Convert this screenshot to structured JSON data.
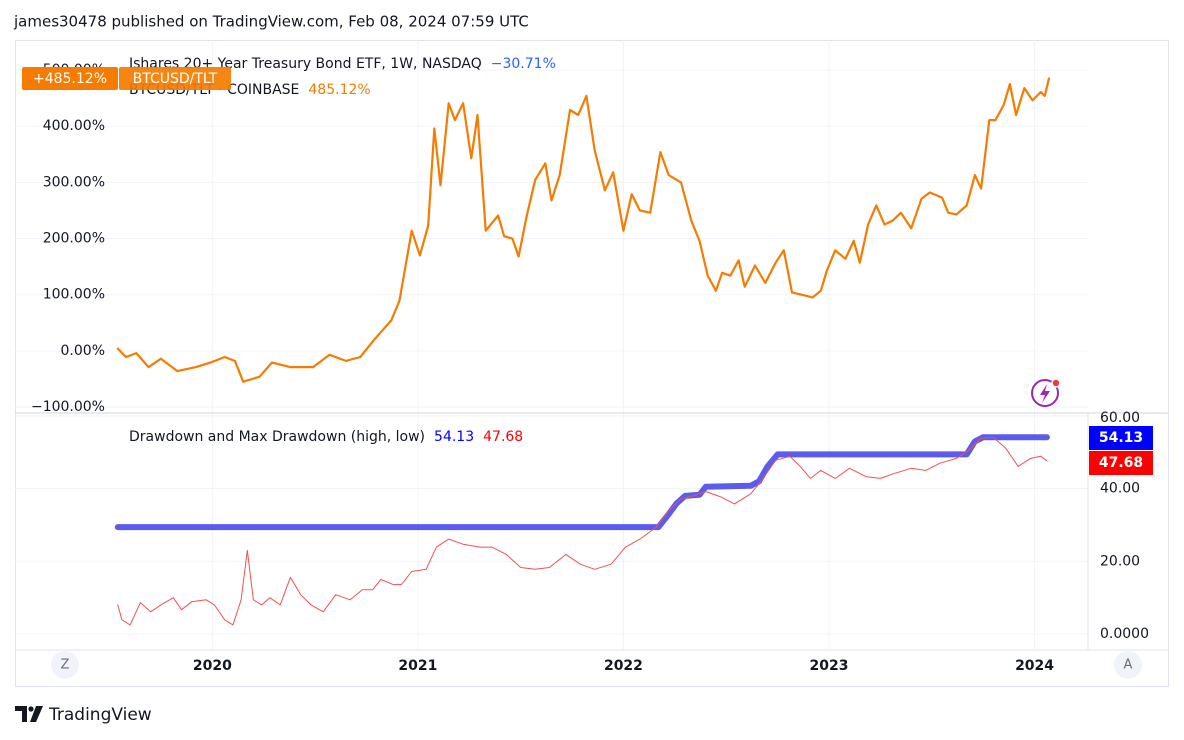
{
  "header": "james30478 published on TradingView.com, Feb 08, 2024 07:59 UTC",
  "footer": "TradingView",
  "buttons": [
    "Z",
    "A"
  ],
  "chart_data": [
    {
      "type": "line",
      "legend": [
        "Ishares 20+ Year Treasury Bond ETF, 1W, NASDAQ",
        "−30.71%",
        "BTCUSD/TLT · COINBASE"
      ],
      "legend_colors": [
        "#131722",
        "#2962ff",
        "#131722"
      ],
      "badge": "+485.12%",
      "series": [
        {
          "name": "BTCUSD/TLT",
          "color": "#f57c00",
          "value_label": "485.12%",
          "x": [
            2019.54,
            2019.58,
            2019.63,
            2019.69,
            2019.75,
            2019.83,
            2019.92,
            2019.99,
            2020.06,
            2020.11,
            2020.15,
            2020.23,
            2020.29,
            2020.38,
            2020.49,
            2020.57,
            2020.65,
            2020.72,
            2020.79,
            2020.87,
            2020.91,
            2020.97,
            2021.01,
            2021.05,
            2021.08,
            2021.11,
            2021.15,
            2021.18,
            2021.22,
            2021.26,
            2021.29,
            2021.33,
            2021.39,
            2021.42,
            2021.46,
            2021.49,
            2021.53,
            2021.57,
            2021.62,
            2021.65,
            2021.69,
            2021.74,
            2021.78,
            2021.82,
            2021.86,
            2021.91,
            2021.95,
            2022.0,
            2022.04,
            2022.08,
            2022.13,
            2022.18,
            2022.22,
            2022.28,
            2022.33,
            2022.37,
            2022.41,
            2022.45,
            2022.48,
            2022.52,
            2022.56,
            2022.59,
            2022.64,
            2022.69,
            2022.74,
            2022.78,
            2022.82,
            2022.89,
            2022.92,
            2022.96,
            2022.99,
            2023.03,
            2023.08,
            2023.12,
            2023.15,
            2023.19,
            2023.23,
            2023.27,
            2023.31,
            2023.35,
            2023.4,
            2023.45,
            2023.49,
            2023.55,
            2023.58,
            2023.62,
            2023.67,
            2023.71,
            2023.74,
            2023.78,
            2023.81,
            2023.85,
            2023.88,
            2023.91,
            2023.95,
            2023.99,
            2024.03,
            2024.05,
            2024.07
          ],
          "values": [
            4,
            -11,
            -4,
            -29,
            -14,
            -36,
            -29,
            -21,
            -11,
            -18,
            -55,
            -46,
            -21,
            -29,
            -29,
            -7,
            -18,
            -11,
            21,
            54,
            89,
            214,
            170,
            223,
            396,
            295,
            441,
            411,
            441,
            343,
            420,
            214,
            241,
            204,
            200,
            168,
            241,
            304,
            334,
            268,
            313,
            429,
            420,
            454,
            357,
            286,
            318,
            214,
            279,
            250,
            246,
            354,
            313,
            300,
            232,
            196,
            134,
            107,
            139,
            134,
            161,
            114,
            152,
            121,
            157,
            179,
            104,
            98,
            95,
            107,
            143,
            179,
            164,
            196,
            157,
            225,
            259,
            225,
            232,
            246,
            218,
            271,
            282,
            273,
            246,
            243,
            259,
            313,
            289,
            411,
            411,
            438,
            475,
            420,
            468,
            446,
            461,
            454,
            485.12
          ]
        }
      ],
      "xlim": [
        2019.04,
        2024.26
      ],
      "xticks": [
        2020,
        2021,
        2022,
        2023,
        2024
      ],
      "ylim": [
        -110.7,
        553.6
      ],
      "yticks": [
        {
          "value": -100,
          "label": "−100.00%"
        },
        {
          "value": 0,
          "label": "0.00%"
        },
        {
          "value": 100,
          "label": "100.00%"
        },
        {
          "value": 200,
          "label": "200.00%"
        },
        {
          "value": 300,
          "label": "300.00%"
        },
        {
          "value": 400,
          "label": "400.00%"
        },
        {
          "value": 500,
          "label": "500.00%"
        }
      ],
      "grid": true
    },
    {
      "type": "line",
      "title": "Drawdown and Max Drawdown (high, low)",
      "series": [
        {
          "color": "#5b5bee",
          "label_color": "#0000ff",
          "value_label": "54.13",
          "x": [
            2019.54,
            2022.17,
            2022.22,
            2022.26,
            2022.3,
            2022.37,
            2022.4,
            2022.62,
            2022.66,
            2022.7,
            2022.75,
            2023.67,
            2023.71,
            2023.75,
            2024.06
          ],
          "values": [
            29.4,
            29.4,
            33,
            36,
            38,
            38.3,
            40.5,
            40.8,
            42,
            46,
            49.4,
            49.4,
            53,
            54.13,
            54.13
          ]
        },
        {
          "color": "#f05252",
          "label_color": "#ff0000",
          "value_label": "47.68",
          "x": [
            2019.54,
            2019.56,
            2019.6,
            2019.65,
            2019.7,
            2019.75,
            2019.81,
            2019.85,
            2019.9,
            2019.97,
            2020.01,
            2020.06,
            2020.1,
            2020.14,
            2020.17,
            2020.2,
            2020.24,
            2020.28,
            2020.33,
            2020.38,
            2020.43,
            2020.48,
            2020.54,
            2020.6,
            2020.67,
            2020.73,
            2020.78,
            2020.82,
            2020.88,
            2020.92,
            2020.97,
            2021.04,
            2021.09,
            2021.15,
            2021.22,
            2021.3,
            2021.36,
            2021.43,
            2021.5,
            2021.57,
            2021.64,
            2021.72,
            2021.79,
            2021.86,
            2021.94,
            2022.01,
            2022.08,
            2022.16,
            2022.22,
            2022.28,
            2022.34,
            2022.4,
            2022.47,
            2022.54,
            2022.62,
            2022.68,
            2022.74,
            2022.81,
            2022.86,
            2022.91,
            2022.96,
            2023.03,
            2023.1,
            2023.18,
            2023.25,
            2023.32,
            2023.4,
            2023.47,
            2023.54,
            2023.62,
            2023.68,
            2023.74,
            2023.8,
            2023.86,
            2023.92,
            2023.98,
            2024.03,
            2024.06
          ],
          "values": [
            8,
            3.9,
            2.5,
            8.6,
            6.1,
            8,
            10,
            6.7,
            8.9,
            9.4,
            8,
            3.9,
            2.5,
            9.4,
            23,
            9.4,
            8,
            10,
            8,
            15.6,
            10.8,
            8,
            6.1,
            10.8,
            9.4,
            12.2,
            12.2,
            15,
            13.6,
            13.6,
            17.2,
            17.8,
            23.9,
            26.1,
            24.7,
            23.9,
            23.9,
            21.9,
            18.3,
            17.8,
            18.3,
            21.9,
            19.2,
            17.8,
            19.2,
            23.9,
            26.1,
            29.4,
            33.9,
            37.2,
            38,
            39.2,
            37.8,
            35.8,
            38.6,
            42.8,
            47.8,
            48.9,
            46.1,
            42.8,
            45,
            42.8,
            45.6,
            43.3,
            42.8,
            44.2,
            45.6,
            45,
            47,
            48.3,
            50.6,
            53.9,
            54.1,
            51.1,
            46.1,
            48.3,
            48.9,
            47.68
          ]
        }
      ],
      "xlim": [
        2019.04,
        2024.26
      ],
      "xticks": [
        2020,
        2021,
        2022,
        2023,
        2024
      ],
      "ylim": [
        -4.4,
        60.8
      ],
      "yticks": [
        {
          "value": 0,
          "label": "0.0000"
        },
        {
          "value": 20,
          "label": "20.00"
        },
        {
          "value": 40,
          "label": "40.00"
        },
        {
          "value": 60,
          "label": "60.00"
        }
      ],
      "grid": true
    }
  ]
}
